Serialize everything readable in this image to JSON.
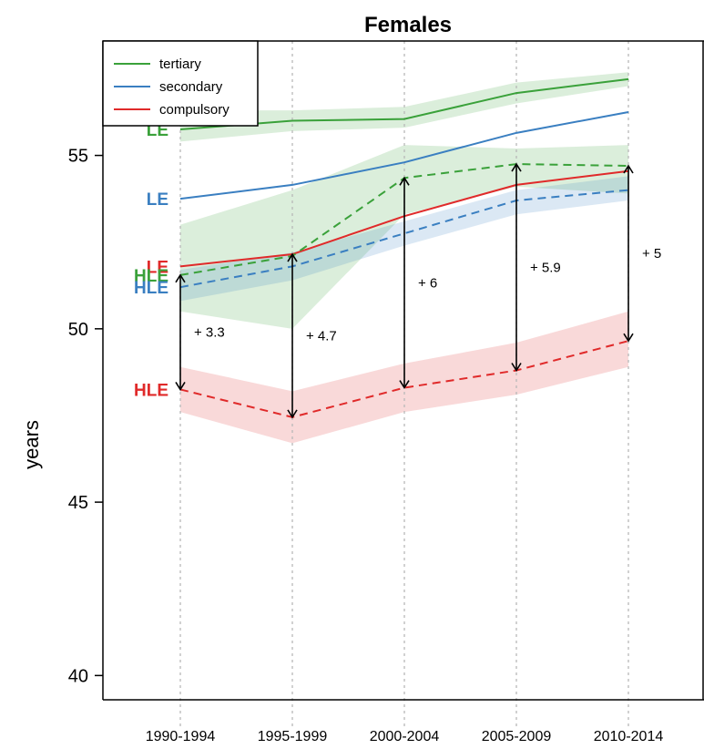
{
  "chart_data": {
    "type": "line",
    "title": "Females",
    "xlabel": "",
    "ylabel": "years",
    "categories": [
      "1990-1994",
      "1995-1999",
      "2000-2004",
      "2005-2009",
      "2010-2014"
    ],
    "yticks": [
      40,
      45,
      50,
      55
    ],
    "ylim": [
      39.3,
      58.3
    ],
    "grid": "vertical dotted",
    "legend_position": "top-left",
    "series": [
      {
        "name": "tertiary",
        "measure": "LE",
        "style": "solid",
        "color": "#3aa13a",
        "values": [
          55.75,
          56.0,
          56.05,
          56.8,
          57.2
        ],
        "ci_low": [
          55.4,
          55.7,
          55.8,
          56.5,
          57.0
        ],
        "ci_high": [
          56.3,
          56.3,
          56.4,
          57.1,
          57.4
        ]
      },
      {
        "name": "secondary",
        "measure": "LE",
        "style": "solid",
        "color": "#3a7fc1",
        "values": [
          53.75,
          54.15,
          54.8,
          55.65,
          56.25
        ]
      },
      {
        "name": "compulsory",
        "measure": "LE",
        "style": "solid",
        "color": "#e02a2a",
        "values": [
          51.8,
          52.15,
          53.25,
          54.15,
          54.55
        ]
      },
      {
        "name": "tertiary",
        "measure": "HLE",
        "style": "dashed",
        "color": "#3aa13a",
        "values": [
          51.55,
          52.1,
          54.35,
          54.75,
          54.7
        ],
        "ci_low": [
          50.5,
          50.0,
          53.3,
          54.1,
          53.9
        ],
        "ci_high": [
          53.0,
          54.0,
          55.3,
          55.2,
          55.3
        ]
      },
      {
        "name": "secondary",
        "measure": "HLE",
        "style": "dashed",
        "color": "#3a7fc1",
        "values": [
          51.2,
          51.8,
          52.75,
          53.7,
          54.0
        ],
        "ci_low": [
          50.8,
          51.4,
          52.4,
          53.3,
          53.7
        ],
        "ci_high": [
          51.7,
          52.2,
          53.1,
          54.0,
          54.4
        ]
      },
      {
        "name": "compulsory",
        "measure": "HLE",
        "style": "dashed",
        "color": "#e02a2a",
        "values": [
          48.25,
          47.45,
          48.3,
          48.8,
          49.65
        ],
        "ci_low": [
          47.6,
          46.7,
          47.6,
          48.1,
          48.9
        ],
        "ci_high": [
          48.9,
          48.2,
          49.0,
          49.6,
          50.5
        ]
      }
    ],
    "series_labels": [
      {
        "text": "LE",
        "color": "#3aa13a",
        "y": 55.75
      },
      {
        "text": "LE",
        "color": "#3a7fc1",
        "y": 53.75
      },
      {
        "text": "LE",
        "color": "#e02a2a",
        "y": 51.8
      },
      {
        "text": "HLE",
        "color": "#3aa13a",
        "y": 51.55
      },
      {
        "text": "HLE",
        "color": "#3a7fc1",
        "y": 51.2
      },
      {
        "text": "HLE",
        "color": "#e02a2a",
        "y": 48.25
      }
    ],
    "gap_arrows": [
      {
        "x_index": 0,
        "from": 48.25,
        "to": 51.55,
        "label": "+ 3.3"
      },
      {
        "x_index": 1,
        "from": 47.45,
        "to": 52.15,
        "label": "+ 4.7"
      },
      {
        "x_index": 2,
        "from": 48.3,
        "to": 54.35,
        "label": "+ 6"
      },
      {
        "x_index": 3,
        "from": 48.8,
        "to": 54.75,
        "label": "+ 5.9"
      },
      {
        "x_index": 4,
        "from": 49.65,
        "to": 54.7,
        "label": "+ 5"
      }
    ],
    "legend": [
      {
        "label": "tertiary",
        "color": "#3aa13a"
      },
      {
        "label": "secondary",
        "color": "#3a7fc1"
      },
      {
        "label": "compulsory",
        "color": "#e02a2a"
      }
    ]
  }
}
